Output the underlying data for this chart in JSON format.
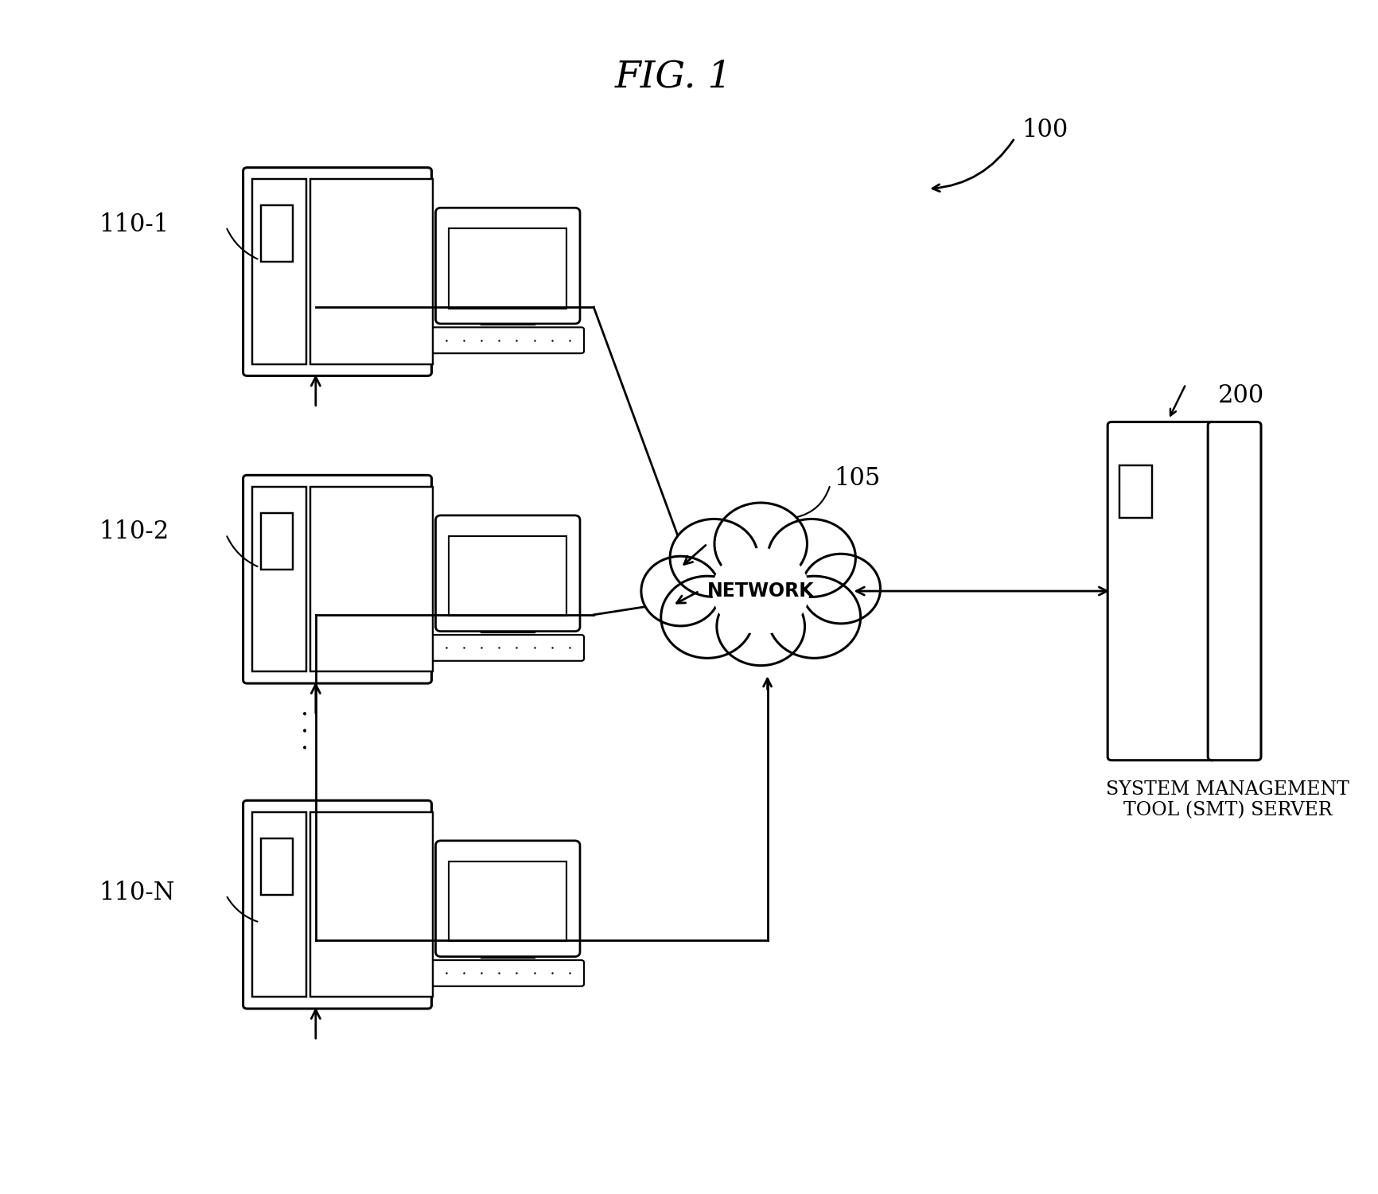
{
  "title": "FIG. 1",
  "bg": "#ffffff",
  "label_100": "100",
  "label_105": "105",
  "label_200": "200",
  "label_network": "NETWORK",
  "label_smt": "SYSTEM MANAGEMENT\nTOOL (SMT) SERVER",
  "label_node1": "110-1",
  "label_node2": "110-2",
  "label_nodeN": "110-N",
  "n1x": 0.255,
  "n1y": 0.775,
  "n2x": 0.255,
  "n2y": 0.515,
  "nNx": 0.255,
  "nNy": 0.24,
  "netx": 0.565,
  "nety": 0.505,
  "svx": 0.865,
  "svy": 0.505
}
